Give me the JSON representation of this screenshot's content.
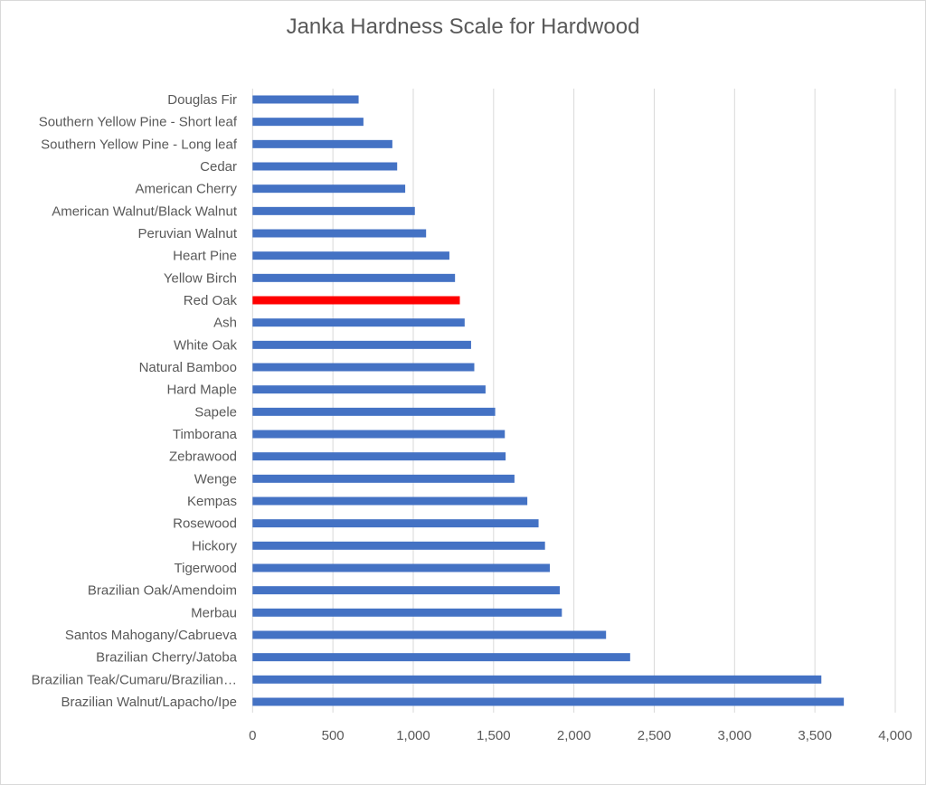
{
  "chart_data": {
    "type": "bar",
    "orientation": "horizontal",
    "title": "Janka Hardness Scale for Hardwood",
    "xlabel": "",
    "ylabel": "",
    "xlim": [
      0,
      4000
    ],
    "x_ticks": [
      "0",
      "500",
      "1,000",
      "1,500",
      "2,000",
      "2,500",
      "3,000",
      "3,500",
      "4,000"
    ],
    "grid": "vertical",
    "legend": "none",
    "bar_color": "#4472c4",
    "highlight_color": "#ff0000",
    "highlight_category": "Red Oak",
    "categories": [
      "Douglas Fir",
      "Southern Yellow Pine - Short leaf",
      "Southern Yellow Pine - Long leaf",
      "Cedar",
      "American Cherry",
      "American Walnut/Black Walnut",
      "Peruvian Walnut",
      "Heart Pine",
      "Yellow Birch",
      "Red Oak",
      "Ash",
      "White Oak",
      "Natural Bamboo",
      "Hard Maple",
      "Sapele",
      "Timborana",
      "Zebrawood",
      "Wenge",
      "Kempas",
      "Rosewood",
      "Hickory",
      "Tigerwood",
      "Brazilian Oak/Amendoim",
      "Merbau",
      "Santos Mahogany/Cabrueva",
      "Brazilian Cherry/Jatoba",
      "Brazilian Teak/Cumaru/Brazilian…",
      "Brazilian Walnut/Lapacho/Ipe"
    ],
    "values": [
      660,
      690,
      870,
      900,
      950,
      1010,
      1080,
      1225,
      1260,
      1290,
      1320,
      1360,
      1380,
      1450,
      1510,
      1570,
      1575,
      1630,
      1710,
      1780,
      1820,
      1850,
      1912,
      1925,
      2200,
      2350,
      3540,
      3680
    ]
  }
}
